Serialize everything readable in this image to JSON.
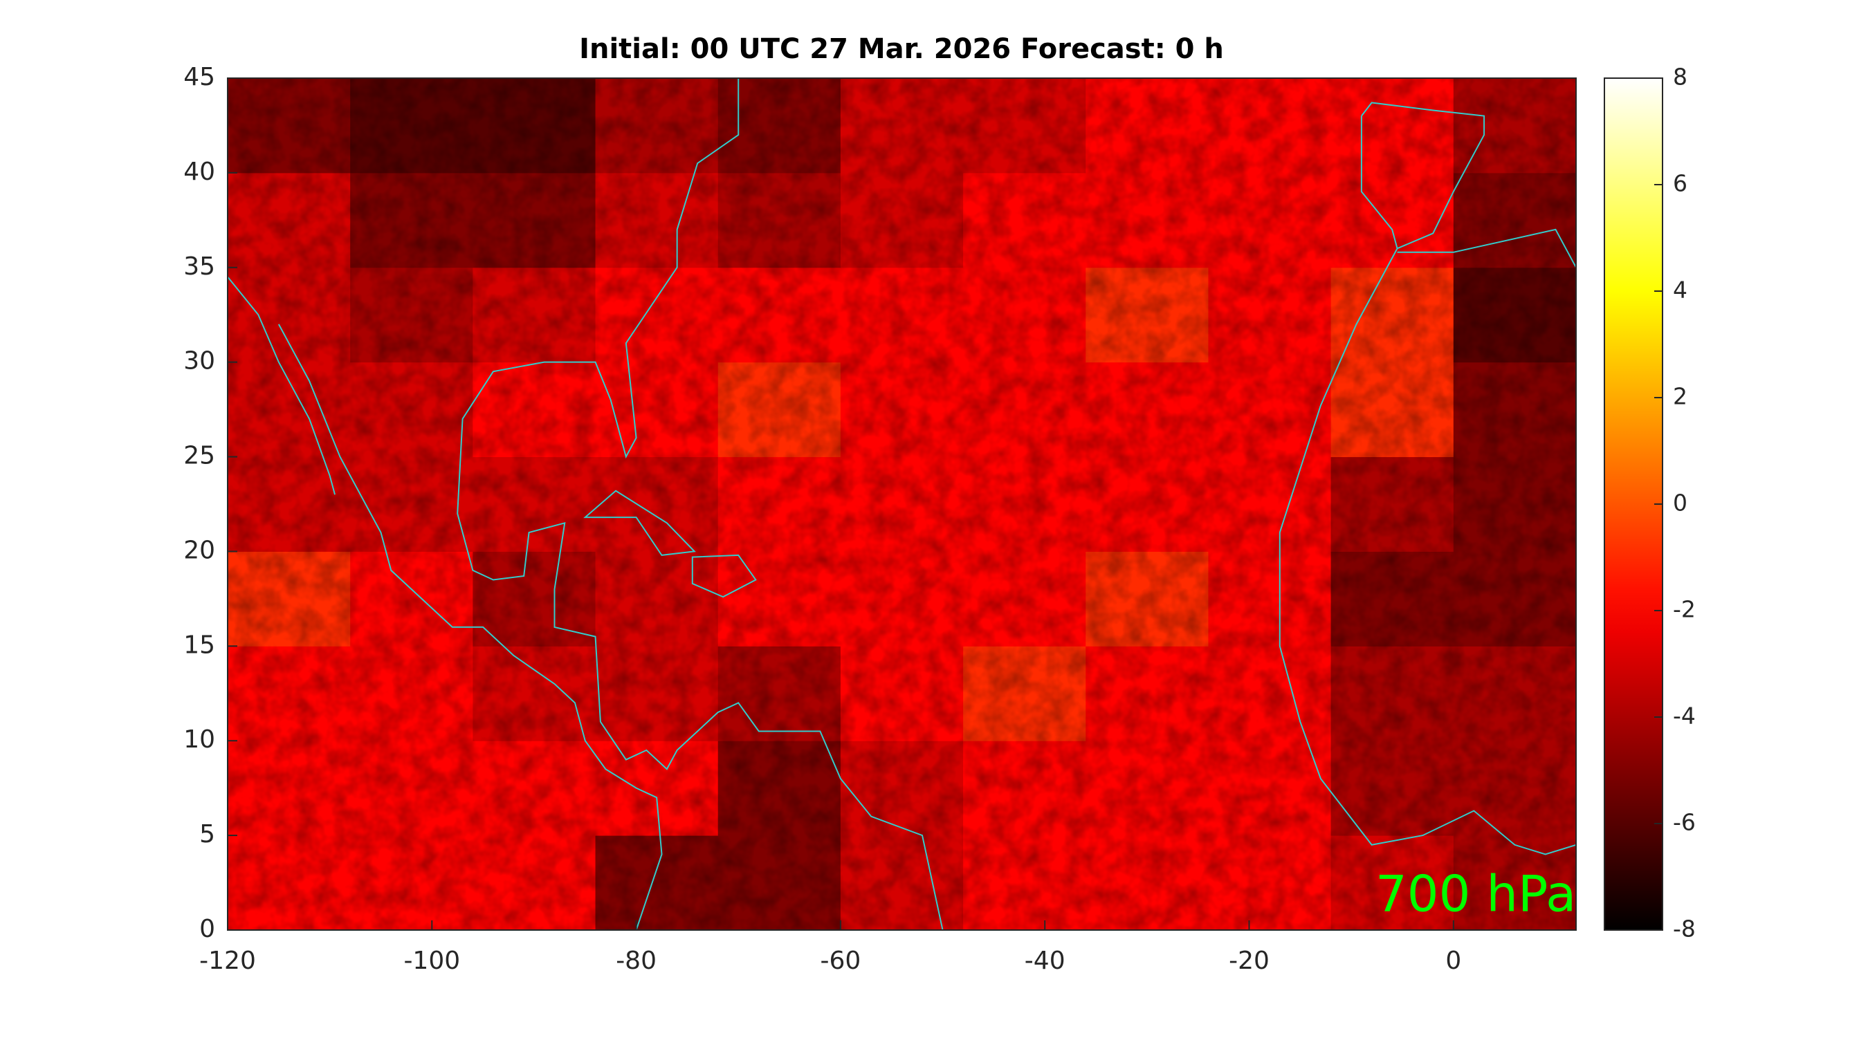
{
  "chart_data": {
    "type": "heatmap",
    "title": "Initial: 00 UTC 27 Mar. 2026 Forecast: 0 h",
    "annotation": "700 hPa",
    "annotation_color": "#00ff00",
    "colormap": "hot",
    "coastline_color": "#33cccc",
    "xlim": [
      -120,
      12
    ],
    "ylim": [
      0,
      45
    ],
    "xticks": [
      -120,
      -100,
      -80,
      -60,
      -40,
      -20,
      0
    ],
    "yticks": [
      0,
      5,
      10,
      15,
      20,
      25,
      30,
      35,
      40,
      45
    ],
    "clim": [
      -8,
      8
    ],
    "cticks": [
      -8,
      -6,
      -4,
      -2,
      0,
      2,
      4,
      6,
      8
    ],
    "x_edges": [
      -120,
      -108,
      -96,
      -84,
      -72,
      -60,
      -48,
      -36,
      -24,
      -12,
      0,
      12
    ],
    "y_edges": [
      0,
      5,
      10,
      15,
      20,
      25,
      30,
      35,
      40,
      45
    ],
    "z": [
      [
        -2,
        -2,
        -2,
        -5,
        -5,
        -3,
        -2,
        -2,
        -2,
        -3,
        -4
      ],
      [
        -2,
        -2,
        -2,
        -2,
        -5,
        -3,
        -2,
        -2,
        -2,
        -4,
        -4
      ],
      [
        -2,
        -2,
        -3,
        -3,
        -4,
        -2,
        -1,
        -2,
        -2,
        -4,
        -4
      ],
      [
        -1,
        -2,
        -4,
        -3,
        -2,
        -2,
        -2,
        -1,
        -2,
        -5,
        -5
      ],
      [
        -3,
        -3,
        -3,
        -3,
        -2,
        -2,
        -2,
        -2,
        -2,
        -4,
        -5
      ],
      [
        -3,
        -3,
        -2,
        -2,
        -1,
        -2,
        -2,
        -2,
        -2,
        -1,
        -5
      ],
      [
        -3,
        -4,
        -3,
        -2,
        -2,
        -2,
        -2,
        -1,
        -2,
        -1,
        -6
      ],
      [
        -3,
        -5,
        -5,
        -3,
        -4,
        -3,
        -2,
        -2,
        -2,
        -2,
        -5
      ],
      [
        -5,
        -6,
        -6,
        -4,
        -5,
        -3,
        -3,
        -2,
        -2,
        -2,
        -4
      ]
    ]
  }
}
